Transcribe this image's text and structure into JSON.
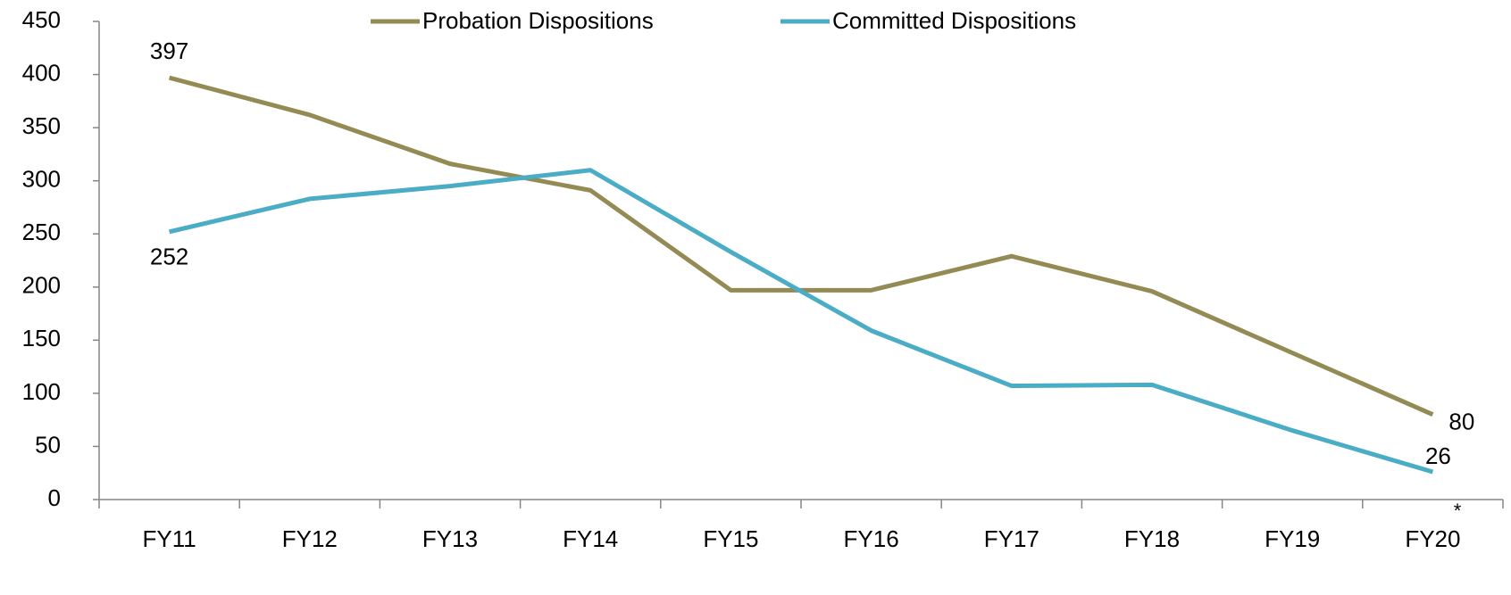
{
  "chart_data": {
    "type": "line",
    "categories": [
      "FY11",
      "FY12",
      "FY13",
      "FY14",
      "FY15",
      "FY16",
      "FY17",
      "FY18",
      "FY19",
      "FY20"
    ],
    "series": [
      {
        "name": "Probation Dispositions",
        "color": "#948a54",
        "values": [
          397,
          362,
          316,
          291,
          197,
          197,
          229,
          196,
          138,
          80
        ]
      },
      {
        "name": "Committed Dispositions",
        "color": "#4bacc6",
        "values": [
          252,
          283,
          295,
          310,
          233,
          159,
          107,
          108,
          65,
          26
        ]
      }
    ],
    "annotation": "*",
    "ylim": [
      0,
      450
    ],
    "yticks": [
      0,
      50,
      100,
      150,
      200,
      250,
      300,
      350,
      400,
      450
    ],
    "legend": "top"
  }
}
